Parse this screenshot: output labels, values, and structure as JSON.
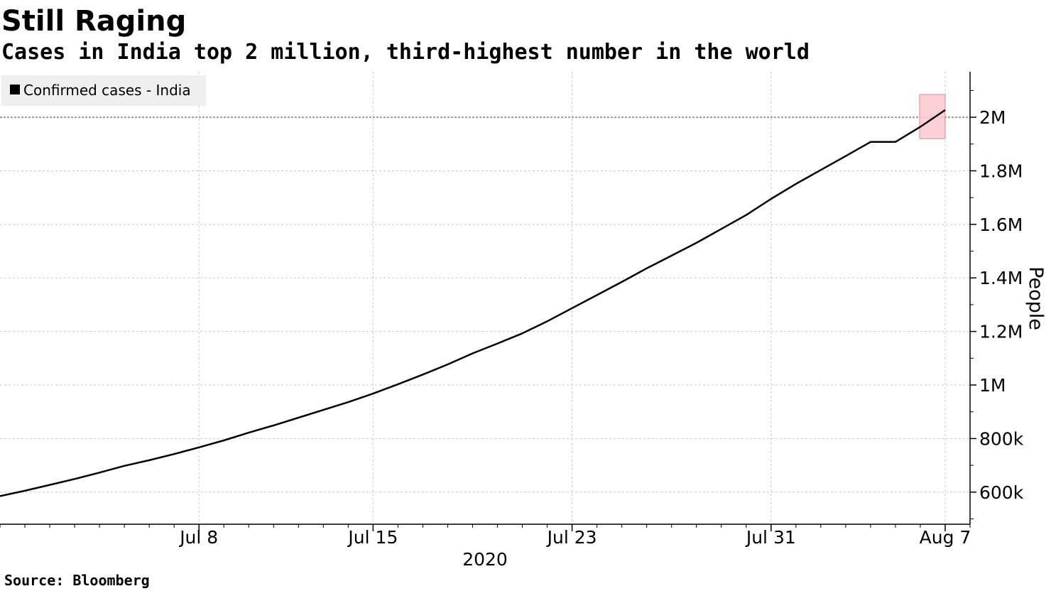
{
  "title": "Still Raging",
  "subtitle": "Cases in India top 2 million, third-highest number in the world",
  "source": "Source: Bloomberg",
  "colors": {
    "line": "#000000",
    "grid": "#c8c8c8",
    "highlight_fill": "#fbc9d0",
    "highlight_stroke": "#e8707f",
    "legend_bg": "#efefef",
    "reference_line": "#999999"
  },
  "chart_data": {
    "type": "line",
    "title": "Still Raging",
    "subtitle": "Cases in India top 2 million, third-highest number in the world",
    "xlabel": "2020",
    "ylabel": "People",
    "legend": {
      "position": "top-left"
    },
    "grid": true,
    "xlim": [
      "2020-06-30",
      "2020-08-08"
    ],
    "ylim": [
      480000,
      2170000
    ],
    "x_ticks": [
      {
        "date": "2020-07-08",
        "label": "Jul 8"
      },
      {
        "date": "2020-07-15",
        "label": "Jul 15"
      },
      {
        "date": "2020-07-23",
        "label": "Jul 23"
      },
      {
        "date": "2020-07-31",
        "label": "Jul 31"
      },
      {
        "date": "2020-08-07",
        "label": "Aug 7"
      }
    ],
    "y_ticks": [
      {
        "value": 600000,
        "label": "600k"
      },
      {
        "value": 800000,
        "label": "800k"
      },
      {
        "value": 1000000,
        "label": "1M"
      },
      {
        "value": 1200000,
        "label": "1.2M"
      },
      {
        "value": 1400000,
        "label": "1.4M"
      },
      {
        "value": 1600000,
        "label": "1.6M"
      },
      {
        "value": 1800000,
        "label": "1.8M"
      },
      {
        "value": 2000000,
        "label": "2M"
      }
    ],
    "reference_line": {
      "y": 2000000
    },
    "highlight": {
      "date": "2020-08-07",
      "ylim": [
        1920000,
        2085000
      ]
    },
    "series": [
      {
        "name": "Confirmed cases - India",
        "color": "#000000",
        "points": [
          {
            "x": "2020-06-30",
            "y": 585000
          },
          {
            "x": "2020-07-01",
            "y": 605000
          },
          {
            "x": "2020-07-02",
            "y": 627000
          },
          {
            "x": "2020-07-03",
            "y": 649000
          },
          {
            "x": "2020-07-04",
            "y": 673000
          },
          {
            "x": "2020-07-05",
            "y": 698000
          },
          {
            "x": "2020-07-06",
            "y": 719000
          },
          {
            "x": "2020-07-07",
            "y": 742000
          },
          {
            "x": "2020-07-08",
            "y": 767000
          },
          {
            "x": "2020-07-09",
            "y": 793000
          },
          {
            "x": "2020-07-10",
            "y": 822000
          },
          {
            "x": "2020-07-11",
            "y": 849000
          },
          {
            "x": "2020-07-12",
            "y": 878000
          },
          {
            "x": "2020-07-13",
            "y": 907000
          },
          {
            "x": "2020-07-14",
            "y": 936000
          },
          {
            "x": "2020-07-15",
            "y": 968000
          },
          {
            "x": "2020-07-16",
            "y": 1003000
          },
          {
            "x": "2020-07-17",
            "y": 1039000
          },
          {
            "x": "2020-07-18",
            "y": 1077000
          },
          {
            "x": "2020-07-19",
            "y": 1118000
          },
          {
            "x": "2020-07-20",
            "y": 1155000
          },
          {
            "x": "2020-07-21",
            "y": 1193000
          },
          {
            "x": "2020-07-22",
            "y": 1238000
          },
          {
            "x": "2020-07-23",
            "y": 1287000
          },
          {
            "x": "2020-07-24",
            "y": 1336000
          },
          {
            "x": "2020-07-25",
            "y": 1385000
          },
          {
            "x": "2020-07-26",
            "y": 1436000
          },
          {
            "x": "2020-07-27",
            "y": 1483000
          },
          {
            "x": "2020-07-28",
            "y": 1531000
          },
          {
            "x": "2020-07-29",
            "y": 1583000
          },
          {
            "x": "2020-07-30",
            "y": 1635000
          },
          {
            "x": "2020-07-31",
            "y": 1695000
          },
          {
            "x": "2020-08-01",
            "y": 1751000
          },
          {
            "x": "2020-08-02",
            "y": 1803000
          },
          {
            "x": "2020-08-03",
            "y": 1855000
          },
          {
            "x": "2020-08-04",
            "y": 1908000
          },
          {
            "x": "2020-08-05",
            "y": 1908000
          },
          {
            "x": "2020-08-06",
            "y": 1964000
          },
          {
            "x": "2020-08-07",
            "y": 2027000
          }
        ]
      }
    ]
  }
}
